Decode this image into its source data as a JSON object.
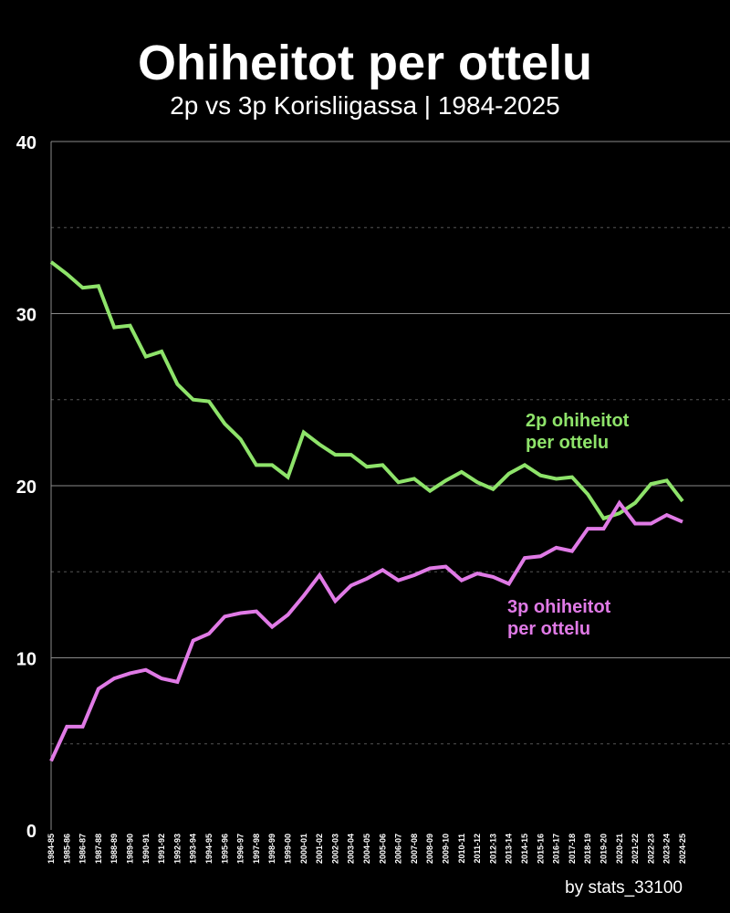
{
  "chart_data": {
    "type": "line",
    "title": "Ohiheitot per ottelu",
    "subtitle": "2p vs 3p Korisliigassa | 1984-2025",
    "credit": "by stats_33100",
    "xlabel": "",
    "ylabel": "",
    "ylim": [
      0,
      40
    ],
    "yticks": [
      "0",
      "10",
      "20",
      "30",
      "40"
    ],
    "grid": true,
    "background": "#000000",
    "categories": [
      "1984-85",
      "1985-86",
      "1986-87",
      "1987-88",
      "1988-89",
      "1989-90",
      "1990-91",
      "1991-92",
      "1992-93",
      "1993-94",
      "1994-95",
      "1995-96",
      "1996-97",
      "1997-98",
      "1998-99",
      "1999-00",
      "2000-01",
      "2001-02",
      "2002-03",
      "2003-04",
      "2004-05",
      "2005-06",
      "2006-07",
      "2007-08",
      "2008-09",
      "2009-10",
      "2010-11",
      "2011-12",
      "2012-13",
      "2013-14",
      "2014-15",
      "2015-16",
      "2016-17",
      "2017-18",
      "2018-19",
      "2019-20",
      "2020-21",
      "2021-22",
      "2022-23",
      "2023-24",
      "2024-25"
    ],
    "series": [
      {
        "name": "2p ohiheitot per ottelu",
        "label_lines": [
          "2p ohiheitot",
          "per ottelu"
        ],
        "color": "#8ee36a",
        "values": [
          33.0,
          32.3,
          31.5,
          31.6,
          29.2,
          29.3,
          27.5,
          27.8,
          25.9,
          25.0,
          24.9,
          23.6,
          22.7,
          21.2,
          21.2,
          20.5,
          23.1,
          22.4,
          21.8,
          21.8,
          21.1,
          21.2,
          20.2,
          20.4,
          19.7,
          20.3,
          20.8,
          20.2,
          19.8,
          20.7,
          21.2,
          20.6,
          20.4,
          20.5,
          19.5,
          18.1,
          18.4,
          19.0,
          20.1,
          20.3,
          19.1
        ]
      },
      {
        "name": "3p ohiheitot per ottelu",
        "label_lines": [
          "3p ohiheitot",
          "per ottelu"
        ],
        "color": "#e07ae6",
        "values": [
          4.0,
          6.0,
          6.0,
          8.2,
          8.8,
          9.1,
          9.3,
          8.8,
          8.6,
          11.0,
          11.4,
          12.4,
          12.6,
          12.7,
          11.8,
          12.5,
          13.6,
          14.8,
          13.3,
          14.2,
          14.6,
          15.1,
          14.5,
          14.8,
          15.2,
          15.3,
          14.5,
          14.9,
          14.7,
          14.3,
          15.8,
          15.9,
          16.4,
          16.2,
          17.5,
          17.5,
          19.0,
          17.8,
          17.8,
          18.3,
          17.9
        ]
      }
    ]
  }
}
